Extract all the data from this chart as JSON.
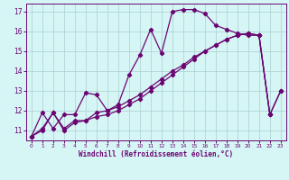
{
  "line1_x": [
    0,
    1,
    2,
    3,
    4,
    5,
    6,
    7,
    8,
    9,
    10,
    11,
    12,
    13,
    14,
    15,
    16,
    17,
    18,
    19,
    20,
    21,
    22
  ],
  "line1_y": [
    10.7,
    11.9,
    11.1,
    11.8,
    11.8,
    12.9,
    12.8,
    12.0,
    12.3,
    13.8,
    14.8,
    16.1,
    14.9,
    17.0,
    17.1,
    17.1,
    16.9,
    16.3,
    16.1,
    15.9,
    15.8,
    15.8,
    11.8
  ],
  "line2_x": [
    0,
    1,
    2,
    3,
    4,
    5,
    6,
    7,
    8,
    9,
    10,
    11,
    12,
    13,
    14,
    15,
    16,
    17,
    18,
    19,
    20,
    21,
    22,
    23
  ],
  "line2_y": [
    10.7,
    11.1,
    11.9,
    11.1,
    11.5,
    11.5,
    11.9,
    12.0,
    12.2,
    12.5,
    12.8,
    13.2,
    13.6,
    14.0,
    14.3,
    14.7,
    15.0,
    15.3,
    15.6,
    15.8,
    15.9,
    15.8,
    11.8,
    13.0
  ],
  "line3_x": [
    0,
    1,
    2,
    3,
    4,
    5,
    6,
    7,
    8,
    9,
    10,
    11,
    12,
    13,
    14,
    15,
    16,
    17,
    18,
    19,
    20,
    21,
    22,
    23
  ],
  "line3_y": [
    10.7,
    11.0,
    11.9,
    11.0,
    11.4,
    11.5,
    11.7,
    11.8,
    12.0,
    12.3,
    12.6,
    13.0,
    13.4,
    13.8,
    14.2,
    14.6,
    15.0,
    15.3,
    15.6,
    15.8,
    15.9,
    15.8,
    11.8,
    13.0
  ],
  "line_color": "#6a0572",
  "bg_color": "#d6f5f5",
  "grid_color": "#aacfcf",
  "xlabel": "Windchill (Refroidissement éolien,°C)",
  "xlim": [
    -0.5,
    23.5
  ],
  "ylim": [
    10.5,
    17.4
  ],
  "yticks": [
    11,
    12,
    13,
    14,
    15,
    16,
    17
  ],
  "xticks": [
    0,
    1,
    2,
    3,
    4,
    5,
    6,
    7,
    8,
    9,
    10,
    11,
    12,
    13,
    14,
    15,
    16,
    17,
    18,
    19,
    20,
    21,
    22,
    23
  ],
  "markersize": 2.2,
  "linewidth": 0.9
}
